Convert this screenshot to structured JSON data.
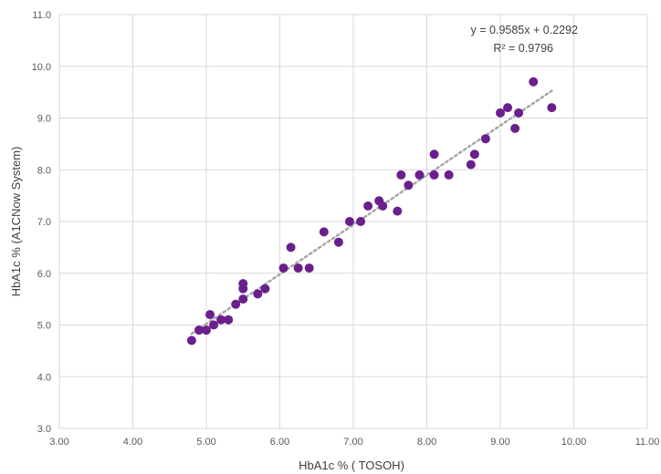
{
  "chart_data": {
    "type": "scatter",
    "title": "",
    "xlabel": "HbA1c % ( TOSOH)",
    "ylabel": "HbA1c % (A1CNow System)",
    "xlim": [
      3,
      11
    ],
    "ylim": [
      3,
      11
    ],
    "x_ticks": [
      "3.00",
      "4.00",
      "5.00",
      "6.00",
      "7.00",
      "8.00",
      "9.00",
      "10.00",
      "11.00"
    ],
    "y_ticks": [
      "3.0",
      "4.0",
      "5.0",
      "6.0",
      "7.0",
      "8.0",
      "9.0",
      "10.0",
      "11.0"
    ],
    "grid": true,
    "legend": "none",
    "marker_color": "#6a1f8c",
    "trendline": {
      "color": "#a6a6a6",
      "style": "dotted",
      "slope": 0.9585,
      "intercept": 0.2292,
      "x_range": [
        4.8,
        9.7
      ],
      "equation_text": "y = 0.9585x + 0.2292",
      "r2_text": "R² = 0.9796"
    },
    "points": [
      {
        "x": 4.8,
        "y": 4.7
      },
      {
        "x": 4.9,
        "y": 4.9
      },
      {
        "x": 5.0,
        "y": 4.9
      },
      {
        "x": 5.05,
        "y": 5.2
      },
      {
        "x": 5.1,
        "y": 5.0
      },
      {
        "x": 5.2,
        "y": 5.1
      },
      {
        "x": 5.3,
        "y": 5.1
      },
      {
        "x": 5.4,
        "y": 5.4
      },
      {
        "x": 5.5,
        "y": 5.5
      },
      {
        "x": 5.5,
        "y": 5.7
      },
      {
        "x": 5.5,
        "y": 5.8
      },
      {
        "x": 5.7,
        "y": 5.6
      },
      {
        "x": 5.8,
        "y": 5.7
      },
      {
        "x": 6.05,
        "y": 6.1
      },
      {
        "x": 6.15,
        "y": 6.5
      },
      {
        "x": 6.25,
        "y": 6.1
      },
      {
        "x": 6.4,
        "y": 6.1
      },
      {
        "x": 6.6,
        "y": 6.8
      },
      {
        "x": 6.8,
        "y": 6.6
      },
      {
        "x": 6.95,
        "y": 7.0
      },
      {
        "x": 7.1,
        "y": 7.0
      },
      {
        "x": 7.2,
        "y": 7.3
      },
      {
        "x": 7.35,
        "y": 7.4
      },
      {
        "x": 7.4,
        "y": 7.3
      },
      {
        "x": 7.6,
        "y": 7.2
      },
      {
        "x": 7.65,
        "y": 7.9
      },
      {
        "x": 7.75,
        "y": 7.7
      },
      {
        "x": 7.9,
        "y": 7.9
      },
      {
        "x": 8.1,
        "y": 7.9
      },
      {
        "x": 8.1,
        "y": 8.3
      },
      {
        "x": 8.3,
        "y": 7.9
      },
      {
        "x": 8.6,
        "y": 8.1
      },
      {
        "x": 8.65,
        "y": 8.3
      },
      {
        "x": 8.8,
        "y": 8.6
      },
      {
        "x": 9.0,
        "y": 9.1
      },
      {
        "x": 9.1,
        "y": 9.2
      },
      {
        "x": 9.2,
        "y": 8.8
      },
      {
        "x": 9.25,
        "y": 9.1
      },
      {
        "x": 9.45,
        "y": 9.7
      },
      {
        "x": 9.7,
        "y": 9.2
      }
    ]
  }
}
